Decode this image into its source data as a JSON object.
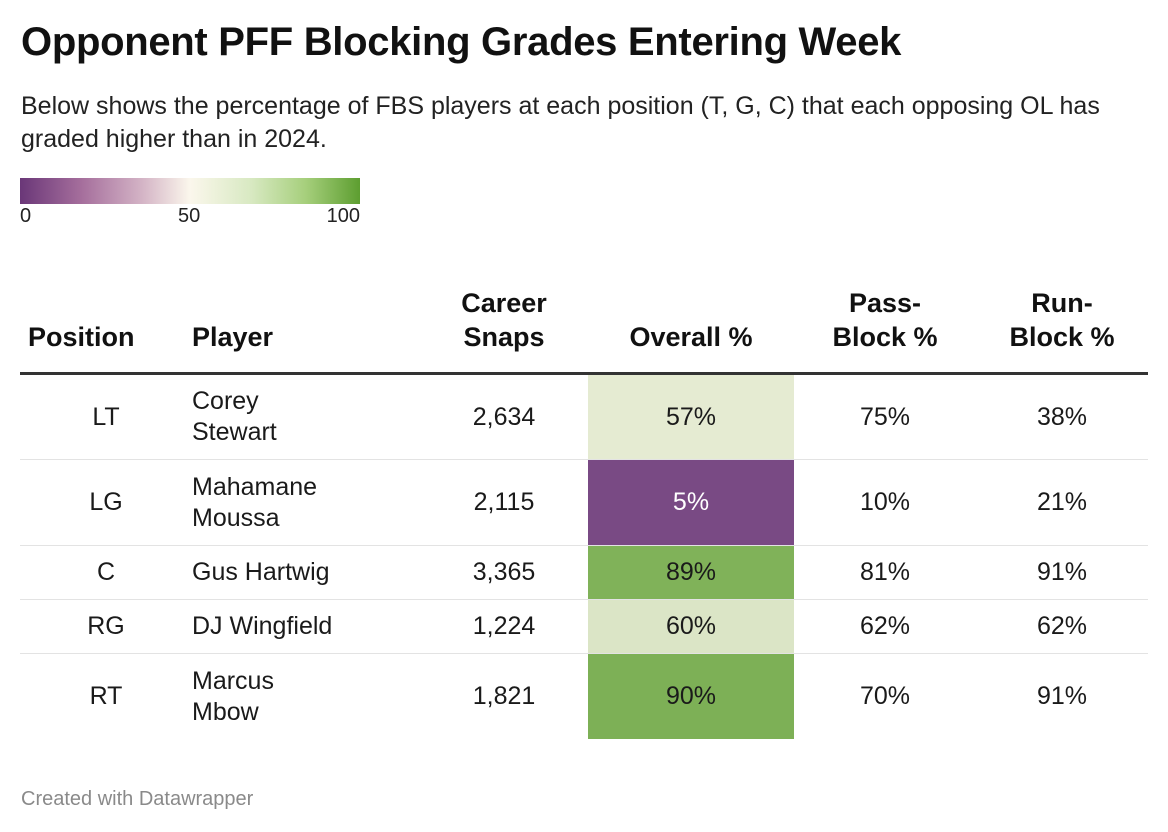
{
  "title": "Opponent PFF Blocking Grades Entering Week",
  "subtitle": "Below shows the percentage of FBS players at each position (T, G, C) that each opposing OL has graded higher than in 2024.",
  "legend": {
    "ticks": [
      "0",
      "50",
      "100"
    ],
    "colors": [
      "#6a3778",
      "#fbf7ec",
      "#5d9e30"
    ]
  },
  "footer": "Created with Datawrapper",
  "chart_data": {
    "type": "table",
    "title": "Opponent PFF Blocking Grades Entering Week",
    "columns": [
      "Position",
      "Player",
      "Career Snaps",
      "Overall %",
      "Pass-Block %",
      "Run-Block %"
    ],
    "column_header_lines": [
      [
        "Position"
      ],
      [
        "Player"
      ],
      [
        "Career",
        "Snaps"
      ],
      [
        "Overall %"
      ],
      [
        "Pass-",
        "Block %"
      ],
      [
        "Run-",
        "Block %"
      ]
    ],
    "color_scale": {
      "column": "Overall %",
      "domain": [
        0,
        50,
        100
      ],
      "colors": [
        "#6a3778",
        "#fbf7ec",
        "#5d9e30"
      ]
    },
    "rows": [
      {
        "position": "LT",
        "player": [
          "Corey",
          "Stewart"
        ],
        "snaps": "2,634",
        "overall": 57,
        "overall_label": "57%",
        "pass_block": "75%",
        "run_block": "38%"
      },
      {
        "position": "LG",
        "player": [
          "Mahamane",
          "Moussa"
        ],
        "snaps": "2,115",
        "overall": 5,
        "overall_label": "5%",
        "pass_block": "10%",
        "run_block": "21%"
      },
      {
        "position": "C",
        "player": [
          "Gus Hartwig"
        ],
        "snaps": "3,365",
        "overall": 89,
        "overall_label": "89%",
        "pass_block": "81%",
        "run_block": "91%"
      },
      {
        "position": "RG",
        "player": [
          "DJ Wingfield"
        ],
        "snaps": "1,224",
        "overall": 60,
        "overall_label": "60%",
        "pass_block": "62%",
        "run_block": "62%"
      },
      {
        "position": "RT",
        "player": [
          "Marcus",
          "Mbow"
        ],
        "snaps": "1,821",
        "overall": 90,
        "overall_label": "90%",
        "pass_block": "70%",
        "run_block": "91%"
      }
    ]
  }
}
